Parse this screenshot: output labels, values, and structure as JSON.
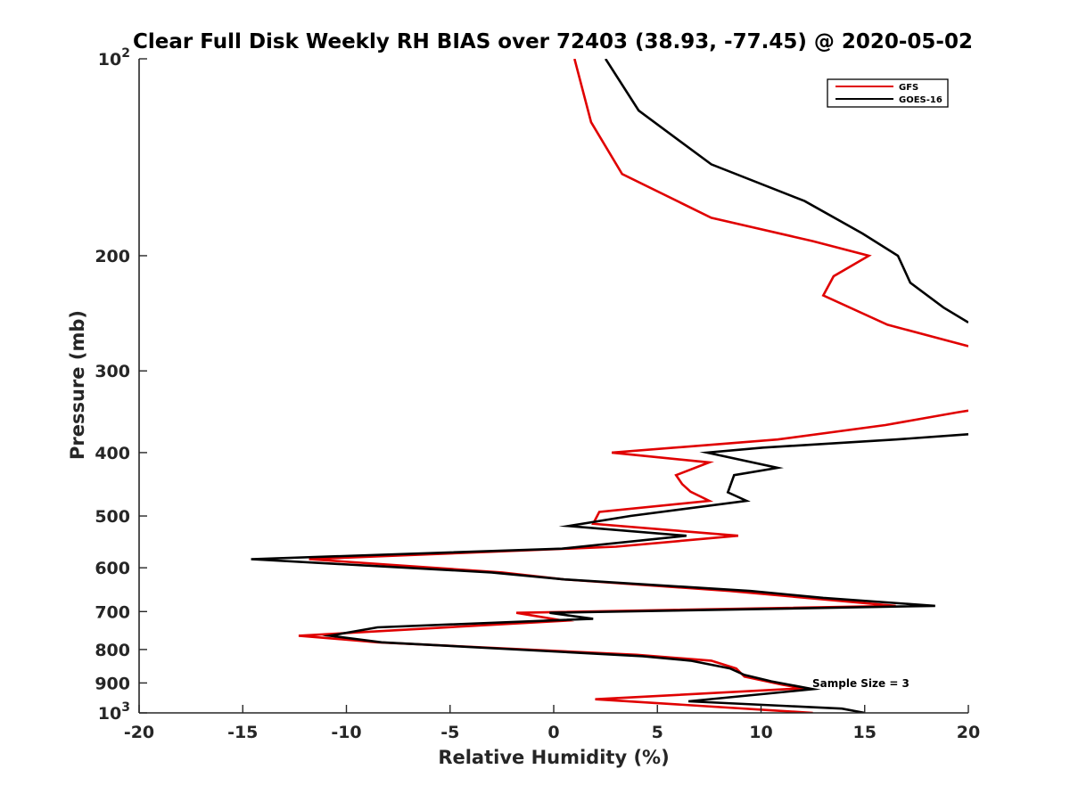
{
  "chart_data": {
    "type": "line",
    "title": "Clear Full Disk Weekly RH BIAS over 72403 (38.93, -77.45) @ 2020-05-02",
    "xlabel": "Relative Humidity (%)",
    "ylabel": "Pressure (mb)",
    "xlim": [
      -20,
      20
    ],
    "ylim": [
      100,
      1000
    ],
    "y_scale": "log",
    "y_reversed": true,
    "grid": false,
    "legend_position": "top-right",
    "x_ticks": [
      "-20",
      "-15",
      "-10",
      "-5",
      "0",
      "5",
      "10",
      "15",
      "20"
    ],
    "y_ticks": [
      {
        "value": 100,
        "label": "10",
        "sup": "2"
      },
      {
        "value": 200,
        "label": "200",
        "sup": ""
      },
      {
        "value": 300,
        "label": "300",
        "sup": ""
      },
      {
        "value": 400,
        "label": "400",
        "sup": ""
      },
      {
        "value": 500,
        "label": "500",
        "sup": ""
      },
      {
        "value": 600,
        "label": "600",
        "sup": ""
      },
      {
        "value": 700,
        "label": "700",
        "sup": ""
      },
      {
        "value": 800,
        "label": "800",
        "sup": ""
      },
      {
        "value": 900,
        "label": "900",
        "sup": ""
      },
      {
        "value": 1000,
        "label": "10",
        "sup": "3"
      }
    ],
    "annotation": "Sample Size = 3",
    "series": [
      {
        "name": "GFS",
        "color": "#e00000",
        "segments": [
          [
            [
              1.0,
              100
            ],
            [
              1.8,
              125
            ],
            [
              3.3,
              150
            ],
            [
              7.6,
              175
            ],
            [
              12.5,
              190
            ],
            [
              15.2,
              200
            ],
            [
              13.5,
              215
            ],
            [
              13.0,
              230
            ],
            [
              16.1,
              255
            ],
            [
              20.0,
              275
            ]
          ],
          [
            [
              20.0,
              345
            ],
            [
              19.5,
              347
            ],
            [
              16.0,
              363
            ],
            [
              10.8,
              382
            ],
            [
              2.8,
              400
            ],
            [
              7.5,
              414
            ],
            [
              5.9,
              433
            ],
            [
              6.2,
              447
            ],
            [
              6.6,
              459
            ],
            [
              7.5,
              474
            ],
            [
              2.2,
              493
            ],
            [
              1.9,
              514
            ],
            [
              8.9,
              536
            ],
            [
              3.0,
              557
            ],
            [
              -11.8,
              582
            ],
            [
              -2.5,
              610
            ],
            [
              0.5,
              625
            ],
            [
              8.5,
              651
            ],
            [
              16.5,
              686
            ],
            [
              -1.8,
              703
            ],
            [
              0.5,
              723
            ],
            [
              -12.3,
              762
            ],
            [
              -8.5,
              780
            ],
            [
              4.0,
              815
            ],
            [
              7.6,
              832
            ],
            [
              8.8,
              855
            ],
            [
              9.2,
              880
            ],
            [
              11.0,
              905
            ],
            [
              12.0,
              917
            ],
            [
              2.0,
              953
            ],
            [
              12.5,
              1000
            ]
          ]
        ]
      },
      {
        "name": "GOES-16",
        "color": "#000000",
        "segments": [
          [
            [
              2.5,
              100
            ],
            [
              4.1,
              120
            ],
            [
              7.6,
              145
            ],
            [
              12.1,
              165
            ],
            [
              14.9,
              185
            ],
            [
              16.6,
              200
            ],
            [
              17.2,
              220
            ],
            [
              18.8,
              240
            ],
            [
              20.0,
              253
            ]
          ],
          [
            [
              20.0,
              375
            ],
            [
              16.5,
              382
            ],
            [
              10.1,
              393
            ],
            [
              7.4,
              400
            ],
            [
              10.8,
              422
            ],
            [
              8.7,
              433
            ],
            [
              8.4,
              460
            ],
            [
              9.3,
              474
            ],
            [
              3.7,
              500
            ],
            [
              0.7,
              518
            ],
            [
              6.4,
              536
            ],
            [
              0.4,
              561
            ],
            [
              -14.6,
              582
            ],
            [
              -3.0,
              610
            ],
            [
              0.5,
              625
            ],
            [
              9.5,
              651
            ],
            [
              13.0,
              667
            ],
            [
              18.4,
              686
            ],
            [
              -0.2,
              703
            ],
            [
              1.9,
              718
            ],
            [
              -8.5,
              740
            ],
            [
              -10.8,
              762
            ],
            [
              -8.3,
              780
            ],
            [
              4.3,
              819
            ],
            [
              6.6,
              832
            ],
            [
              8.5,
              855
            ],
            [
              9.2,
              875
            ],
            [
              10.5,
              895
            ],
            [
              12.5,
              920
            ],
            [
              6.5,
              960
            ],
            [
              13.9,
              985
            ],
            [
              15.0,
              1000
            ]
          ]
        ]
      }
    ]
  }
}
